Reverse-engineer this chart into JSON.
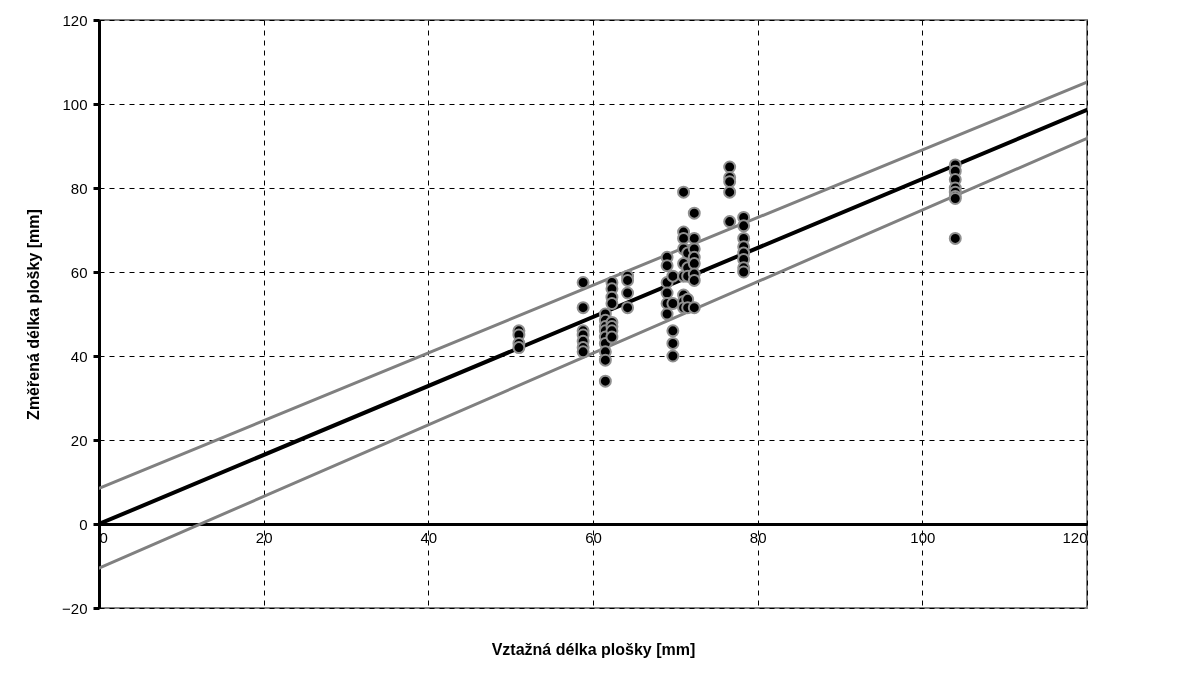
{
  "chart_data": {
    "type": "scatter",
    "xlabel": "Vztažná délka plošky [mm]",
    "ylabel": "Změřená délka plošky [mm]",
    "xlim": [
      0,
      120
    ],
    "ylim": [
      -20,
      120
    ],
    "xticks": [
      0,
      20,
      40,
      60,
      80,
      100,
      120
    ],
    "yticks": [
      -20,
      0,
      20,
      40,
      60,
      80,
      100,
      120
    ],
    "grid": true,
    "series": [
      {
        "type": "line",
        "marker": "none",
        "color": "#808080",
        "x": [
          0,
          120
        ],
        "values": [
          8.5,
          105.2
        ]
      },
      {
        "type": "line",
        "marker": "none",
        "color": "#808080",
        "x": [
          0,
          120
        ],
        "values": [
          -10.5,
          91.8
        ]
      },
      {
        "type": "line",
        "marker": "none",
        "color": "#000000",
        "x": [
          0,
          120
        ],
        "values": [
          0,
          98.6
        ]
      },
      {
        "type": "scatter",
        "marker": "circle",
        "color": "#000000",
        "x": [
          51,
          51,
          51,
          51,
          58.8,
          58.8,
          58.8,
          58.8,
          58.8,
          58.8,
          58.8,
          61.5,
          61.5,
          61.5,
          61.5,
          61.5,
          61.5,
          61.5,
          61.5,
          61.5,
          62.3,
          62.3,
          62.3,
          62.3,
          62.3,
          62.3,
          62.3,
          62.3,
          64.2,
          64.2,
          64.2,
          64.2,
          69,
          69,
          69,
          69,
          69,
          69,
          69.7,
          69.7,
          69.7,
          69.7,
          69.7,
          71,
          71,
          71,
          71,
          71,
          71,
          71,
          71,
          71,
          71.5,
          71.5,
          71.5,
          71.5,
          71.5,
          72.3,
          72.3,
          72.3,
          72.3,
          72.3,
          72.3,
          72.3,
          72.3,
          76.6,
          76.6,
          76.6,
          76.6,
          76.6,
          78.3,
          78.3,
          78.3,
          78.3,
          78.3,
          78.3,
          78.3,
          78.3,
          104,
          104,
          104,
          104,
          104,
          104,
          104,
          104
        ],
        "values": [
          46,
          45,
          43,
          42,
          57.5,
          51.5,
          46,
          45,
          43.5,
          42,
          41,
          50,
          48.5,
          47,
          46,
          44.5,
          43,
          41,
          39,
          34,
          57.5,
          56,
          54,
          52.5,
          48,
          47,
          46,
          44.5,
          59,
          58,
          55,
          51.5,
          63.5,
          61.5,
          57.5,
          55,
          52.5,
          50,
          59,
          52.5,
          46,
          43,
          40,
          79,
          69.5,
          68,
          65.5,
          62,
          59,
          54.5,
          53,
          51.5,
          64.5,
          61,
          59,
          53.5,
          51.5,
          74,
          68,
          65.5,
          63.5,
          62,
          59.5,
          58,
          51.5,
          85,
          82.5,
          81.5,
          79,
          72,
          73,
          71,
          68,
          66,
          64.5,
          63,
          61,
          60,
          85.5,
          84,
          82,
          80,
          79,
          78,
          77.5,
          68
        ]
      }
    ]
  }
}
